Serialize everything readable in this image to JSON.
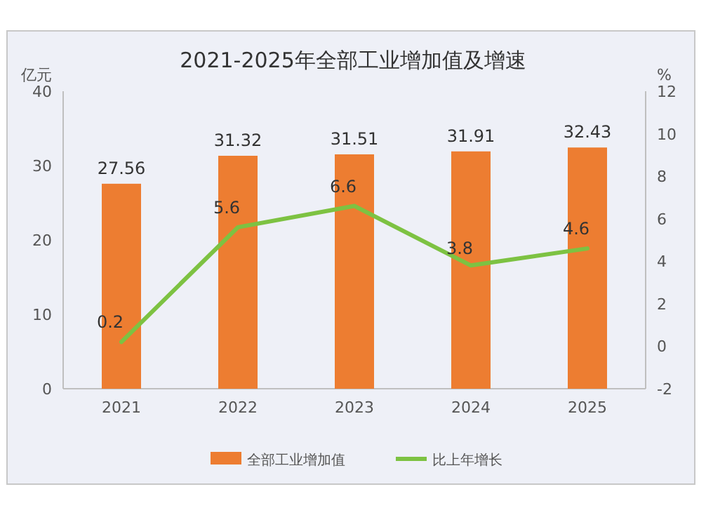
{
  "chart_data": {
    "type": "bar",
    "title": "2021-2025年全部工业增加值及增速",
    "ylabel": "亿元",
    "y2label": "%",
    "categories": [
      "2021",
      "2022",
      "2023",
      "2024",
      "2025"
    ],
    "series": [
      {
        "name": "全部工业增加值",
        "color": "#ed7d31",
        "values": [
          27.56,
          31.32,
          31.51,
          31.91,
          32.43
        ]
      },
      {
        "name": "比上年增长",
        "type": "line",
        "axis": "y2",
        "color": "#7dc242",
        "values": [
          0.2,
          5.6,
          6.6,
          3.8,
          4.6
        ]
      }
    ],
    "ylim": [
      0,
      40
    ],
    "yticks": [
      0,
      10,
      20,
      30,
      40
    ],
    "y2lim": [
      -2,
      12
    ],
    "y2ticks": [
      -2,
      0,
      2,
      4,
      6,
      8,
      10,
      12
    ],
    "data_labels": true,
    "legend": "bottom",
    "grid": false,
    "marker": "none"
  }
}
